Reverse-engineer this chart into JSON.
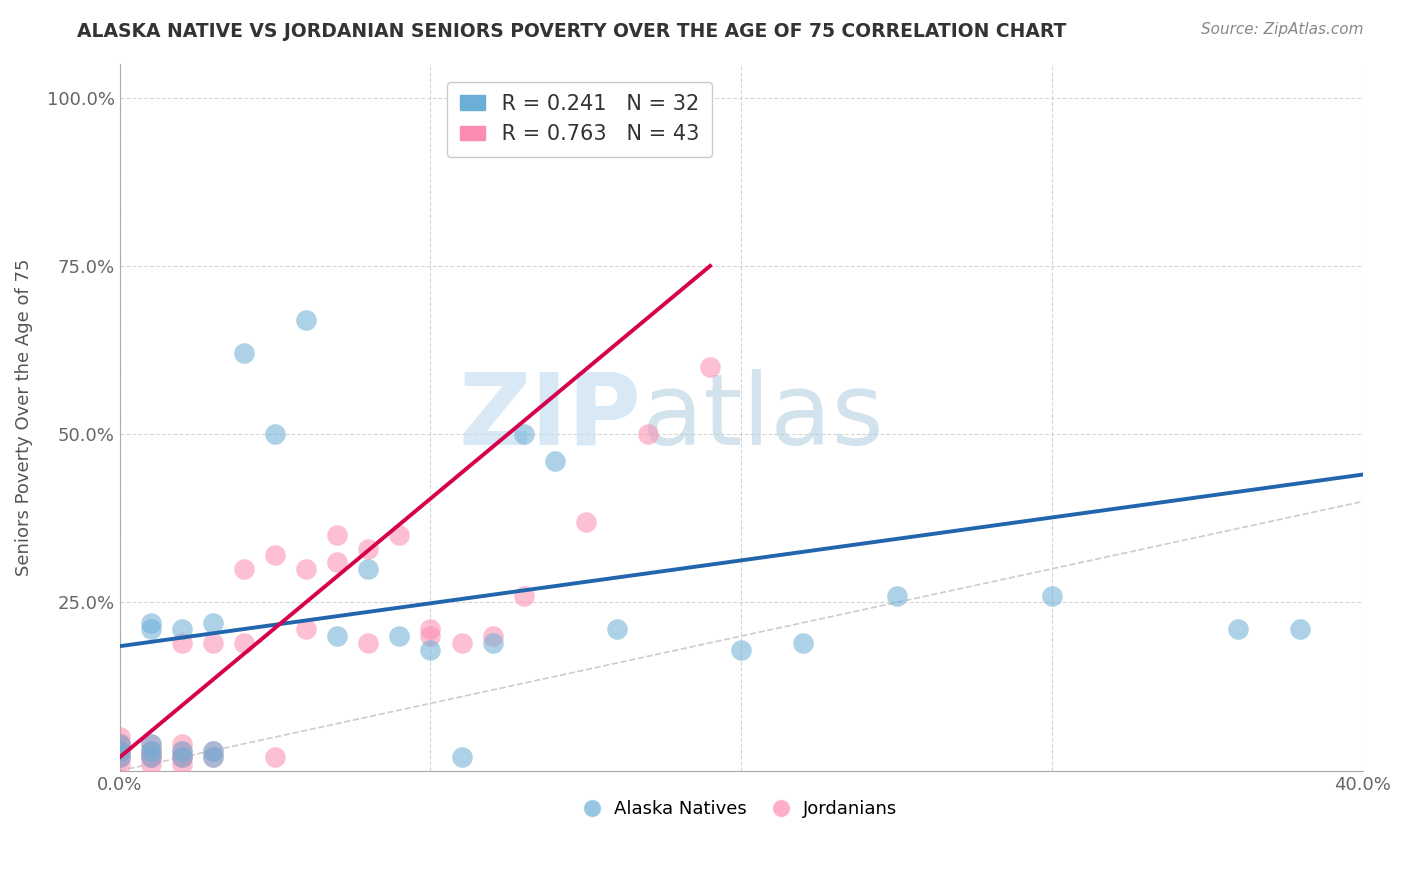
{
  "title": "ALASKA NATIVE VS JORDANIAN SENIORS POVERTY OVER THE AGE OF 75 CORRELATION CHART",
  "source": "Source: ZipAtlas.com",
  "ylabel": "Seniors Poverty Over the Age of 75",
  "xlabel": "",
  "xlim": [
    0.0,
    0.4
  ],
  "ylim": [
    0.0,
    1.05
  ],
  "xticks": [
    0.0,
    0.1,
    0.2,
    0.3,
    0.4
  ],
  "xticklabels": [
    "0.0%",
    "",
    "",
    "",
    "40.0%"
  ],
  "yticks": [
    0.0,
    0.25,
    0.5,
    0.75,
    1.0
  ],
  "yticklabels": [
    "",
    "25.0%",
    "50.0%",
    "75.0%",
    "100.0%"
  ],
  "alaska_R": "0.241",
  "alaska_N": "32",
  "jordan_R": "0.763",
  "jordan_N": "43",
  "alaska_color": "#6baed6",
  "jordan_color": "#fc8db0",
  "alaska_line_color": "#2166ac",
  "jordan_line_color": "#d6004c",
  "diagonal_color": "#cccccc",
  "watermark_zip": "ZIP",
  "watermark_atlas": "atlas",
  "alaska_points_x": [
    0.0,
    0.0,
    0.0,
    0.01,
    0.01,
    0.01,
    0.01,
    0.01,
    0.02,
    0.02,
    0.02,
    0.03,
    0.03,
    0.03,
    0.04,
    0.05,
    0.06,
    0.07,
    0.08,
    0.09,
    0.1,
    0.11,
    0.12,
    0.13,
    0.14,
    0.16,
    0.2,
    0.22,
    0.25,
    0.3,
    0.36,
    0.38
  ],
  "alaska_points_y": [
    0.02,
    0.03,
    0.04,
    0.02,
    0.03,
    0.04,
    0.21,
    0.22,
    0.02,
    0.03,
    0.21,
    0.02,
    0.03,
    0.22,
    0.62,
    0.5,
    0.67,
    0.2,
    0.3,
    0.2,
    0.18,
    0.02,
    0.19,
    0.5,
    0.46,
    0.21,
    0.18,
    0.19,
    0.26,
    0.26,
    0.21,
    0.21
  ],
  "jordan_points_x": [
    0.0,
    0.0,
    0.0,
    0.0,
    0.0,
    0.0,
    0.0,
    0.0,
    0.0,
    0.01,
    0.01,
    0.01,
    0.01,
    0.01,
    0.01,
    0.02,
    0.02,
    0.02,
    0.02,
    0.02,
    0.02,
    0.03,
    0.03,
    0.03,
    0.04,
    0.04,
    0.05,
    0.05,
    0.06,
    0.06,
    0.07,
    0.07,
    0.08,
    0.08,
    0.09,
    0.1,
    0.1,
    0.11,
    0.12,
    0.13,
    0.15,
    0.17,
    0.19
  ],
  "jordan_points_y": [
    0.01,
    0.02,
    0.02,
    0.03,
    0.03,
    0.03,
    0.04,
    0.04,
    0.05,
    0.01,
    0.02,
    0.02,
    0.03,
    0.03,
    0.04,
    0.01,
    0.02,
    0.02,
    0.03,
    0.04,
    0.19,
    0.02,
    0.03,
    0.19,
    0.19,
    0.3,
    0.02,
    0.32,
    0.21,
    0.3,
    0.31,
    0.35,
    0.19,
    0.33,
    0.35,
    0.2,
    0.21,
    0.19,
    0.2,
    0.26,
    0.37,
    0.5,
    0.6
  ],
  "alaska_line_x0": 0.0,
  "alaska_line_y0": 0.185,
  "alaska_line_x1": 0.4,
  "alaska_line_y1": 0.44,
  "jordan_line_x0": 0.0,
  "jordan_line_y0": 0.02,
  "jordan_line_x1": 0.19,
  "jordan_line_y1": 0.75,
  "background_color": "#ffffff",
  "grid_color": "#cccccc"
}
